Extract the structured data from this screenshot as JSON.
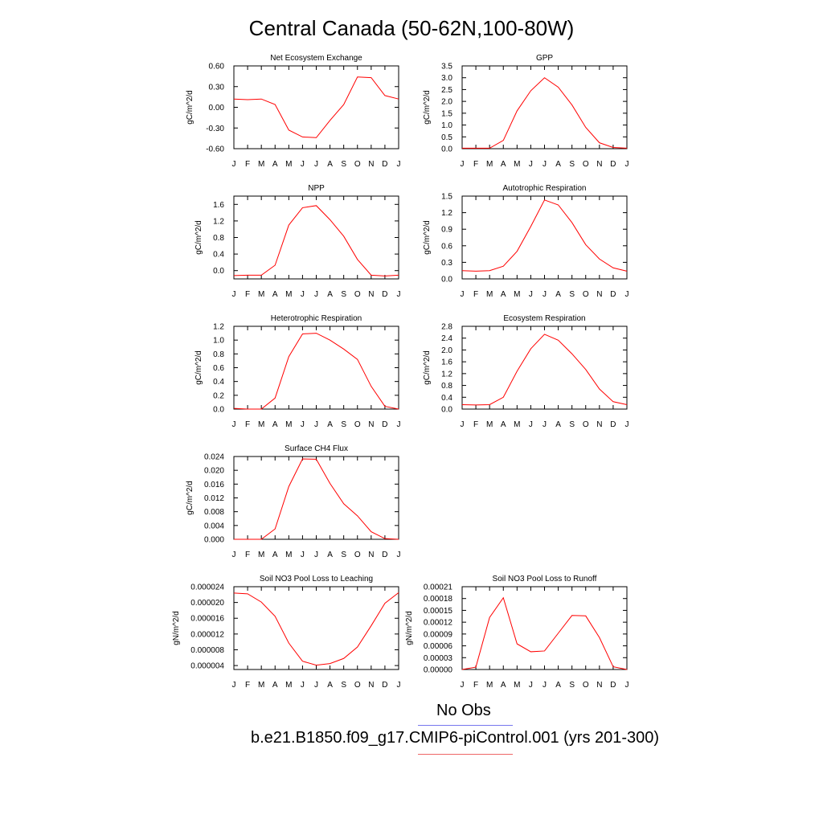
{
  "title": "Central Canada (50-62N,100-80W)",
  "legend": [
    {
      "label": "No Obs",
      "color": "#7777ee"
    },
    {
      "label": "b.e21.B1850.f09_g17.CMIP6-piControl.001 (yrs 201-300)",
      "color": "#ee6666"
    }
  ],
  "line_color": "#ff0000",
  "chart_data": [
    {
      "type": "line",
      "title": "Net Ecosystem Exchange",
      "ylabel": "gC/m^2/d",
      "categories": [
        "J",
        "F",
        "M",
        "A",
        "M",
        "J",
        "J",
        "A",
        "S",
        "O",
        "N",
        "D",
        "J"
      ],
      "ylim": [
        -0.6,
        0.6
      ],
      "yticks": [
        "0.60",
        "0.30",
        "0.00",
        "-0.30",
        "-0.60"
      ],
      "ytick_values": [
        0.6,
        0.3,
        0,
        -0.3,
        -0.6
      ],
      "series": [
        {
          "values": [
            0.12,
            0.11,
            0.12,
            0.04,
            -0.33,
            -0.43,
            -0.44,
            -0.19,
            0.04,
            0.44,
            0.43,
            0.17,
            0.12
          ]
        }
      ]
    },
    {
      "type": "line",
      "title": "GPP",
      "ylabel": "gC/m^2/d",
      "categories": [
        "J",
        "F",
        "M",
        "A",
        "M",
        "J",
        "J",
        "A",
        "S",
        "O",
        "N",
        "D",
        "J"
      ],
      "ylim": [
        0,
        3.5
      ],
      "yticks": [
        "3.5",
        "3.0",
        "2.5",
        "2.0",
        "1.5",
        "1.0",
        "0.5",
        "0.0"
      ],
      "ytick_values": [
        3.5,
        3,
        2.5,
        2,
        1.5,
        1,
        0.5,
        0
      ],
      "series": [
        {
          "values": [
            0.02,
            0.02,
            0.02,
            0.35,
            1.6,
            2.45,
            3.0,
            2.6,
            1.85,
            0.9,
            0.25,
            0.05,
            0.02
          ]
        }
      ]
    },
    {
      "type": "line",
      "title": "NPP",
      "ylabel": "gC/m^2/d",
      "categories": [
        "J",
        "F",
        "M",
        "A",
        "M",
        "J",
        "J",
        "A",
        "S",
        "O",
        "N",
        "D",
        "J"
      ],
      "ylim": [
        -0.2,
        1.8
      ],
      "yticks": [
        "1.6",
        "1.2",
        "0.8",
        "0.4",
        "0.0"
      ],
      "ytick_values": [
        1.6,
        1.2,
        0.8,
        0.4,
        0
      ],
      "series": [
        {
          "values": [
            -0.12,
            -0.11,
            -0.11,
            0.13,
            1.1,
            1.52,
            1.57,
            1.23,
            0.83,
            0.27,
            -0.11,
            -0.13,
            -0.11
          ]
        }
      ]
    },
    {
      "type": "line",
      "title": "Autotrophic Respiration",
      "ylabel": "gC/m^2/d",
      "categories": [
        "J",
        "F",
        "M",
        "A",
        "M",
        "J",
        "J",
        "A",
        "S",
        "O",
        "N",
        "D",
        "J"
      ],
      "ylim": [
        0,
        1.5
      ],
      "yticks": [
        "1.5",
        "1.2",
        "0.9",
        "0.6",
        "0.3",
        "0.0"
      ],
      "ytick_values": [
        1.5,
        1.2,
        0.9,
        0.6,
        0.3,
        0
      ],
      "series": [
        {
          "values": [
            0.15,
            0.14,
            0.15,
            0.23,
            0.5,
            0.95,
            1.43,
            1.34,
            1.02,
            0.62,
            0.36,
            0.2,
            0.14
          ]
        }
      ]
    },
    {
      "type": "line",
      "title": "Heterotrophic Respiration",
      "ylabel": "gC/m^2/d",
      "categories": [
        "J",
        "F",
        "M",
        "A",
        "M",
        "J",
        "J",
        "A",
        "S",
        "O",
        "N",
        "D",
        "J"
      ],
      "ylim": [
        0,
        1.2
      ],
      "yticks": [
        "1.2",
        "1.0",
        "0.8",
        "0.6",
        "0.4",
        "0.2",
        "0.0"
      ],
      "ytick_values": [
        1.2,
        1,
        0.8,
        0.6,
        0.4,
        0.2,
        0
      ],
      "series": [
        {
          "values": [
            0.01,
            0.0,
            0.0,
            0.16,
            0.76,
            1.09,
            1.1,
            1.0,
            0.87,
            0.72,
            0.33,
            0.04,
            0.0
          ]
        }
      ]
    },
    {
      "type": "line",
      "title": "Ecosystem Respiration",
      "ylabel": "gC/m^2/d",
      "categories": [
        "J",
        "F",
        "M",
        "A",
        "M",
        "J",
        "J",
        "A",
        "S",
        "O",
        "N",
        "D",
        "J"
      ],
      "ylim": [
        0,
        2.8
      ],
      "yticks": [
        "2.8",
        "2.4",
        "2.0",
        "1.6",
        "1.2",
        "0.8",
        "0.4",
        "0.0"
      ],
      "ytick_values": [
        2.8,
        2.4,
        2,
        1.6,
        1.2,
        0.8,
        0.4,
        0
      ],
      "series": [
        {
          "values": [
            0.15,
            0.14,
            0.15,
            0.4,
            1.28,
            2.04,
            2.53,
            2.33,
            1.87,
            1.34,
            0.68,
            0.25,
            0.15
          ]
        }
      ]
    },
    {
      "type": "line",
      "title": "Surface CH4 Flux",
      "ylabel": "gC/m^2/d",
      "categories": [
        "J",
        "F",
        "M",
        "A",
        "M",
        "J",
        "J",
        "A",
        "S",
        "O",
        "N",
        "D",
        "J"
      ],
      "ylim": [
        0,
        0.024
      ],
      "yticks": [
        "0.024",
        "0.020",
        "0.016",
        "0.012",
        "0.008",
        "0.004",
        "0.000"
      ],
      "ytick_values": [
        0.024,
        0.02,
        0.016,
        0.012,
        0.008,
        0.004,
        0
      ],
      "series": [
        {
          "values": [
            0.0,
            0.0,
            0.0,
            0.003,
            0.0153,
            0.0233,
            0.0232,
            0.0162,
            0.0103,
            0.0068,
            0.0022,
            0.0002,
            0.0
          ]
        }
      ]
    },
    {
      "type": "line",
      "title": "Soil NO3 Pool Loss to Leaching",
      "ylabel": "gN/m^2/d",
      "categories": [
        "J",
        "F",
        "M",
        "A",
        "M",
        "J",
        "J",
        "A",
        "S",
        "O",
        "N",
        "D",
        "J"
      ],
      "ylim": [
        3e-06,
        2.4e-05
      ],
      "yticks": [
        "0.000024",
        "0.000020",
        "0.000016",
        "0.000012",
        "0.000008",
        "0.000004"
      ],
      "ytick_values": [
        2.4e-05,
        2e-05,
        1.6e-05,
        1.2e-05,
        8e-06,
        4e-06
      ],
      "series": [
        {
          "values": [
            2.24e-05,
            2.22e-05,
            2.01e-05,
            1.65e-05,
            9.7e-06,
            5.1e-06,
            4.1e-06,
            4.5e-06,
            5.8e-06,
            8.7e-06,
            1.41e-05,
            1.98e-05,
            2.25e-05
          ]
        }
      ]
    },
    {
      "type": "line",
      "title": "Soil NO3 Pool Loss to Runoff",
      "ylabel": "gN/m^2/d",
      "categories": [
        "J",
        "F",
        "M",
        "A",
        "M",
        "J",
        "J",
        "A",
        "S",
        "O",
        "N",
        "D",
        "J"
      ],
      "ylim": [
        0,
        0.00021
      ],
      "yticks": [
        "0.00021",
        "0.00018",
        "0.00015",
        "0.00012",
        "0.00009",
        "0.00006",
        "0.00003",
        "0.00000"
      ],
      "ytick_values": [
        0.00021,
        0.00018,
        0.00015,
        0.00012,
        9e-05,
        6e-05,
        3e-05,
        0
      ],
      "series": [
        {
          "values": [
            0.0,
            6e-06,
            0.000132,
            0.000182,
            6.5e-05,
            4.5e-05,
            4.7e-05,
            9.2e-05,
            0.000137,
            0.000136,
            8.1e-05,
            7e-06,
            0.0
          ]
        }
      ]
    }
  ]
}
